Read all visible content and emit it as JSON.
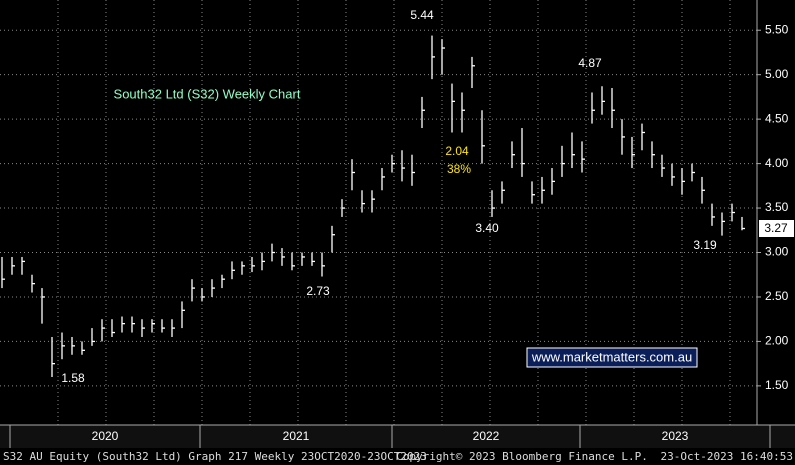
{
  "chart_data": {
    "type": "ohlc",
    "title": "South32 Ltd (S32) Weekly Chart",
    "color": "#ffffff",
    "grid": true,
    "ylim": [
      1.06,
      5.84
    ],
    "yticks": [
      {
        "value": 1.5,
        "label": "1.50"
      },
      {
        "value": 2.0,
        "label": "2.00"
      },
      {
        "value": 2.5,
        "label": "2.50"
      },
      {
        "value": 3.0,
        "label": "3.00"
      },
      {
        "value": 3.5,
        "label": "3.50"
      },
      {
        "value": 4.0,
        "label": "4.00"
      },
      {
        "value": 4.5,
        "label": "4.50"
      },
      {
        "value": 5.0,
        "label": "5.00"
      },
      {
        "value": 5.5,
        "label": "5.50"
      }
    ],
    "years": [
      "2020",
      "2021",
      "2022",
      "2023"
    ],
    "close": [
      2.7,
      2.85,
      2.9,
      2.65,
      2.5,
      1.75,
      1.95,
      1.95,
      1.9,
      2.0,
      2.15,
      2.1,
      2.2,
      2.2,
      2.15,
      2.2,
      2.15,
      2.15,
      2.35,
      2.6,
      2.5,
      2.6,
      2.7,
      2.8,
      2.85,
      2.85,
      2.9,
      3.0,
      2.95,
      2.85,
      2.95,
      2.9,
      2.85,
      3.2,
      3.5,
      3.9,
      3.55,
      3.6,
      3.85,
      4.0,
      3.95,
      3.9,
      4.6,
      5.2,
      5.3,
      4.7,
      4.6,
      5.1,
      4.2,
      3.5,
      3.7,
      4.1,
      4.0,
      3.65,
      3.7,
      3.8,
      4.0,
      4.1,
      4.05,
      4.6,
      4.7,
      4.6,
      4.3,
      4.1,
      4.35,
      4.1,
      3.95,
      3.85,
      3.8,
      3.9,
      3.7,
      3.4,
      3.35,
      3.45,
      3.27
    ],
    "high": [
      2.95,
      2.95,
      2.95,
      2.75,
      2.6,
      2.05,
      2.1,
      2.05,
      2.0,
      2.15,
      2.25,
      2.25,
      2.28,
      2.28,
      2.25,
      2.25,
      2.25,
      2.25,
      2.45,
      2.7,
      2.6,
      2.7,
      2.75,
      2.9,
      2.9,
      2.95,
      3.0,
      3.1,
      3.05,
      3.0,
      3.0,
      3.0,
      3.0,
      3.3,
      3.6,
      4.05,
      3.7,
      3.7,
      3.95,
      4.1,
      4.15,
      4.1,
      4.75,
      5.44,
      5.4,
      4.9,
      4.8,
      5.2,
      4.6,
      3.7,
      3.8,
      4.25,
      4.4,
      3.8,
      3.85,
      3.95,
      4.2,
      4.35,
      4.25,
      4.8,
      4.87,
      4.85,
      4.5,
      4.3,
      4.45,
      4.25,
      4.1,
      4.0,
      3.95,
      4.0,
      3.85,
      3.55,
      3.45,
      3.55,
      3.4
    ],
    "low": [
      2.6,
      2.75,
      2.75,
      2.55,
      2.2,
      1.6,
      1.8,
      1.85,
      1.85,
      1.95,
      2.0,
      2.05,
      2.1,
      2.1,
      2.05,
      2.1,
      2.1,
      2.05,
      2.15,
      2.45,
      2.45,
      2.5,
      2.6,
      2.7,
      2.75,
      2.78,
      2.8,
      2.9,
      2.85,
      2.8,
      2.85,
      2.85,
      2.73,
      3.0,
      3.4,
      3.7,
      3.45,
      3.45,
      3.7,
      3.9,
      3.8,
      3.75,
      4.4,
      4.95,
      5.0,
      4.35,
      4.35,
      4.85,
      4.0,
      3.4,
      3.55,
      3.95,
      3.85,
      3.55,
      3.55,
      3.65,
      3.85,
      3.95,
      3.9,
      4.45,
      4.55,
      4.4,
      4.1,
      3.95,
      4.15,
      3.95,
      3.85,
      3.75,
      3.65,
      3.8,
      3.55,
      3.3,
      3.19,
      3.35,
      3.25
    ],
    "last_price_label": "3.27",
    "annotations": [
      "5.44",
      "4.87",
      "2.04",
      "38%",
      "3.40",
      "2.73",
      "3.19",
      "1.58"
    ],
    "watermark": "www.marketmatters.com.au",
    "footer": [
      "S32 AU Equity (South32 Ltd) Graph 217  Weekly 23OCT2020-23OCT2023",
      "Copyright© 2023 Bloomberg Finance L.P.",
      "23-Oct-2023 16:40:53"
    ]
  }
}
